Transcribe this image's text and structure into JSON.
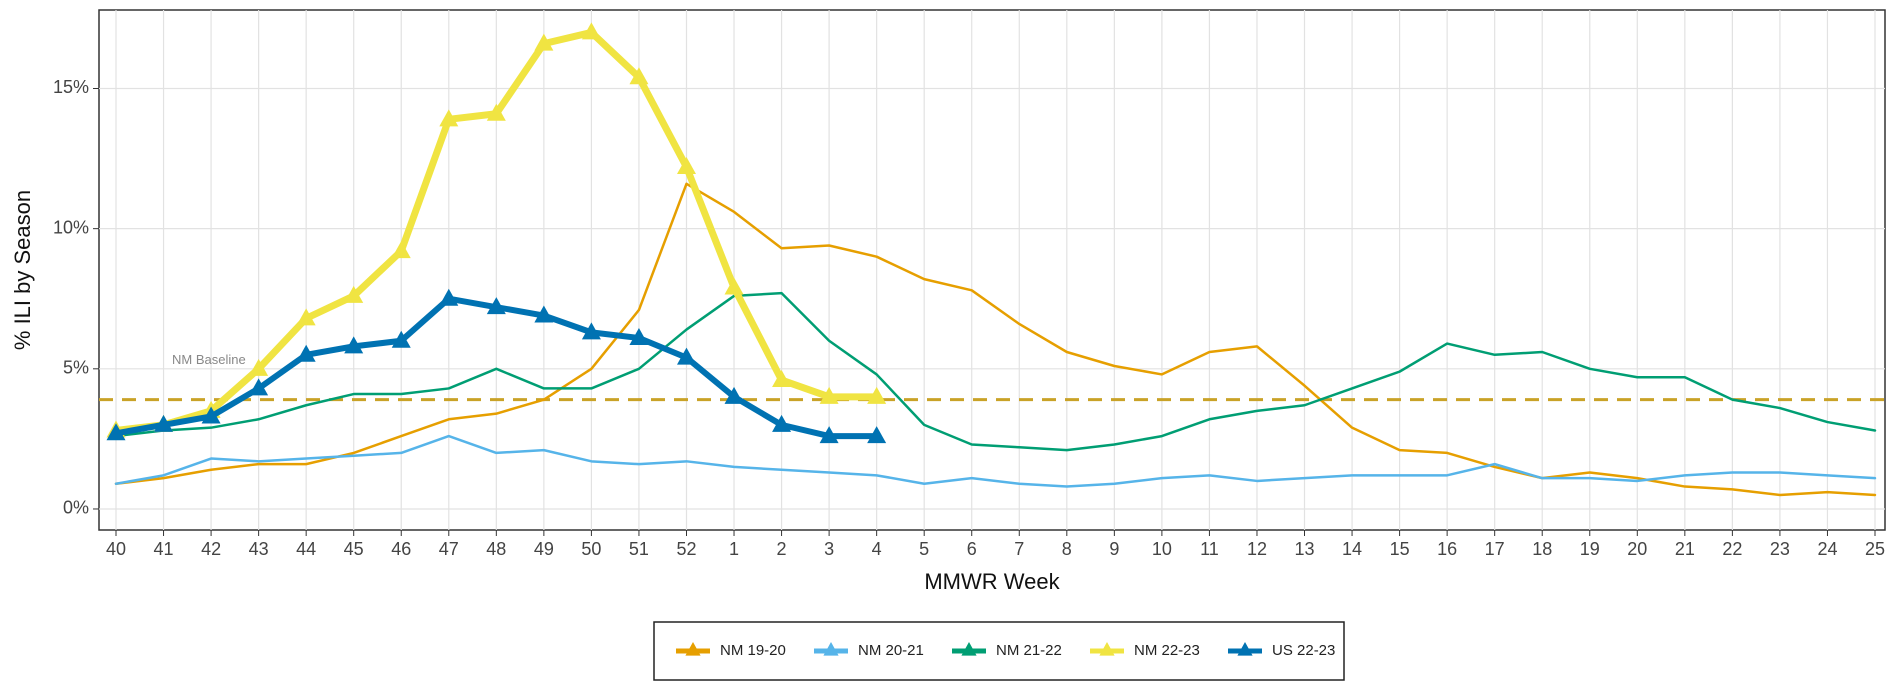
{
  "chart_data": {
    "type": "line",
    "x_label": "MMWR Week",
    "y_label": "% ILI by Season",
    "categories": [
      "40",
      "41",
      "42",
      "43",
      "44",
      "45",
      "46",
      "47",
      "48",
      "49",
      "50",
      "51",
      "52",
      "1",
      "2",
      "3",
      "4",
      "5",
      "6",
      "7",
      "8",
      "9",
      "10",
      "11",
      "12",
      "13",
      "14",
      "15",
      "16",
      "17",
      "18",
      "19",
      "20",
      "21",
      "22",
      "23",
      "24",
      "25"
    ],
    "ylim": [
      -0.75,
      17.8
    ],
    "yticks": [
      {
        "value": 0,
        "label": "0%"
      },
      {
        "value": 5,
        "label": "5%"
      },
      {
        "value": 10,
        "label": "10%"
      },
      {
        "value": 15,
        "label": "15%"
      }
    ],
    "grid": true,
    "baseline": {
      "value": 3.9,
      "label": "NM Baseline",
      "color": "#c9a227"
    },
    "series": [
      {
        "name": "NM 19-20",
        "color": "#e69f00",
        "width": 2.5,
        "markers": false,
        "values": [
          0.9,
          1.1,
          1.4,
          1.6,
          1.6,
          2.0,
          2.6,
          3.2,
          3.4,
          3.9,
          5.0,
          7.1,
          11.6,
          10.6,
          9.3,
          9.4,
          9.0,
          8.2,
          7.8,
          6.6,
          5.6,
          5.1,
          4.8,
          5.6,
          5.8,
          4.4,
          2.9,
          2.1,
          2.0,
          1.5,
          1.1,
          1.3,
          1.1,
          0.8,
          0.7,
          0.5,
          0.6,
          0.5
        ]
      },
      {
        "name": "NM 20-21",
        "color": "#56b4e9",
        "width": 2.5,
        "markers": false,
        "values": [
          0.9,
          1.2,
          1.8,
          1.7,
          1.8,
          1.9,
          2.0,
          2.6,
          2.0,
          2.1,
          1.7,
          1.6,
          1.7,
          1.5,
          1.4,
          1.3,
          1.2,
          0.9,
          1.1,
          0.9,
          0.8,
          0.9,
          1.1,
          1.2,
          1.0,
          1.1,
          1.2,
          1.2,
          1.2,
          1.6,
          1.1,
          1.1,
          1.0,
          1.2,
          1.3,
          1.3,
          1.2,
          1.1
        ]
      },
      {
        "name": "NM 21-22",
        "color": "#009e73",
        "width": 2.5,
        "markers": false,
        "values": [
          2.6,
          2.8,
          2.9,
          3.2,
          3.7,
          4.1,
          4.1,
          4.3,
          5.0,
          4.3,
          4.3,
          5.0,
          6.4,
          7.6,
          7.7,
          6.0,
          4.8,
          3.0,
          2.3,
          2.2,
          2.1,
          2.3,
          2.6,
          3.2,
          3.5,
          3.7,
          4.3,
          4.9,
          5.9,
          5.5,
          5.6,
          5.0,
          4.7,
          4.7,
          3.9,
          3.6,
          3.1,
          2.8
        ]
      },
      {
        "name": "NM 22-23",
        "color": "#f0e442",
        "width": 7,
        "markers": true,
        "values": [
          2.8,
          3.0,
          3.5,
          5.0,
          6.8,
          7.6,
          9.2,
          13.9,
          14.1,
          16.6,
          17.0,
          15.4,
          12.2,
          7.9,
          4.6,
          4.0,
          4.0,
          null,
          null,
          null,
          null,
          null,
          null,
          null,
          null,
          null,
          null,
          null,
          null,
          null,
          null,
          null,
          null,
          null,
          null,
          null,
          null,
          null
        ]
      },
      {
        "name": "US 22-23",
        "color": "#0072b2",
        "width": 6,
        "markers": true,
        "values": [
          2.7,
          3.0,
          3.3,
          4.3,
          5.5,
          5.8,
          6.0,
          7.5,
          7.2,
          6.9,
          6.3,
          6.1,
          5.4,
          4.0,
          3.0,
          2.6,
          2.6,
          null,
          null,
          null,
          null,
          null,
          null,
          null,
          null,
          null,
          null,
          null,
          null,
          null,
          null,
          null,
          null,
          null,
          null,
          null,
          null,
          null
        ]
      }
    ]
  }
}
